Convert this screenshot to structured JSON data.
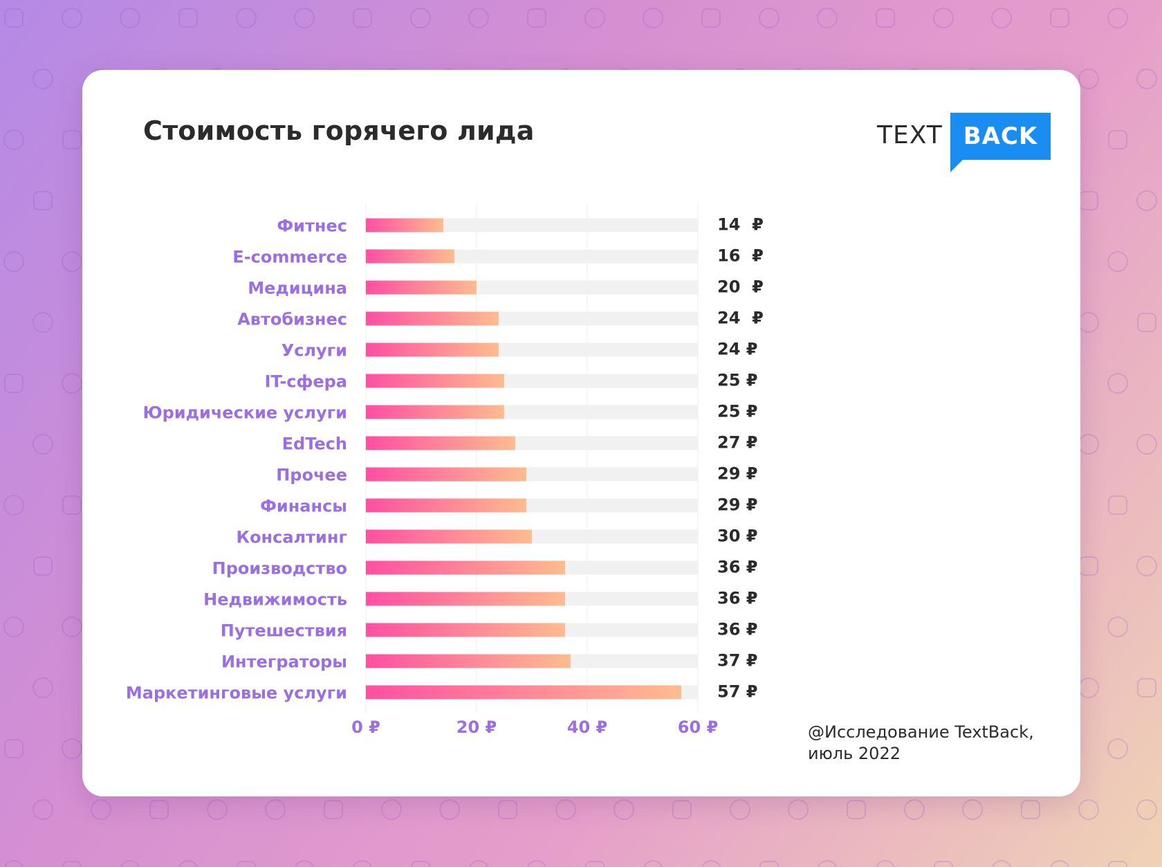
{
  "colors": {
    "label": "#9b6fe0",
    "bar_start": "#ff4fa2",
    "bar_end": "#ffbc8f",
    "track": "#f1f1f1",
    "value_text": "#2b2b2b",
    "logo_blue": "#1a8df2"
  },
  "logo": {
    "text_part": "TEXT",
    "box_part": "BACK"
  },
  "footer": {
    "source_line1": "@Исследование TextBack,",
    "source_line2": "июль 2022"
  },
  "chart_data": {
    "type": "bar",
    "orientation": "horizontal",
    "title": "Стоимость горячего лида",
    "categories": [
      "Фитнес",
      "E-commerce",
      "Медицина",
      "Автобизнес",
      "Услуги",
      "IT-сфера",
      "Юридические услуги",
      "EdTech",
      "Прочее",
      "Финансы",
      "Консалтинг",
      "Производство",
      "Недвижимость",
      "Путешествия",
      "Интеграторы",
      "Маркетинговые услуги"
    ],
    "values": [
      14,
      16,
      20,
      24,
      24,
      25,
      25,
      27,
      29,
      29,
      30,
      36,
      36,
      36,
      37,
      57
    ],
    "value_labels": [
      "14  ₽",
      "16  ₽",
      "20  ₽",
      "24  ₽",
      "24 ₽",
      "25 ₽",
      "25 ₽",
      "27 ₽",
      "29 ₽",
      "29 ₽",
      "30 ₽",
      "36 ₽",
      "36 ₽",
      "36 ₽",
      "37 ₽",
      "57 ₽"
    ],
    "xlim": [
      0,
      60
    ],
    "x_ticks": [
      0,
      20,
      40,
      60
    ],
    "x_tick_labels": [
      "0 ₽",
      "20 ₽",
      "40 ₽",
      "60 ₽"
    ],
    "grid": true,
    "legend": "none"
  }
}
